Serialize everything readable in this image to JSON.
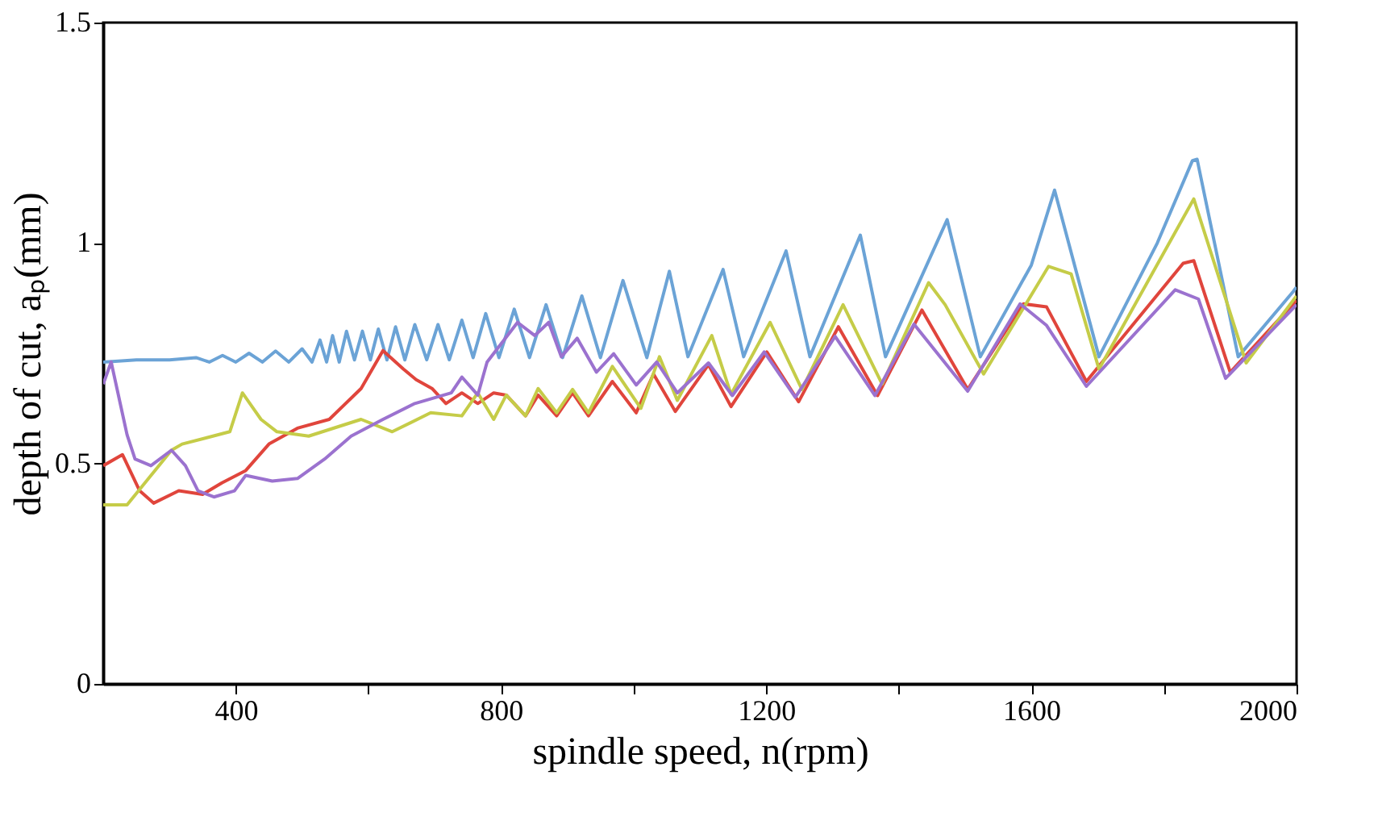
{
  "chart_data": {
    "type": "line",
    "xlabel": "spindle speed, n(rpm)",
    "ylabel": "depth of cut, aₚ(mm)",
    "xlim": [
      200,
      2000
    ],
    "ylim": [
      0,
      1.5
    ],
    "xticks": [
      400,
      {
        "value": 600,
        "label": null
      },
      800,
      {
        "value": 1000,
        "label": null
      },
      1200,
      {
        "value": 1400,
        "label": null
      },
      1600,
      {
        "value": 1800,
        "label": null
      },
      2000
    ],
    "yticks": [
      0,
      0.5,
      1,
      1.5
    ],
    "series": [
      {
        "color": "#6ba3d6",
        "x": [
          200,
          250,
          300,
          340,
          360,
          380,
          400,
          420,
          440,
          460,
          480,
          500,
          515,
          527,
          537,
          546,
          556,
          567,
          579,
          591,
          603,
          615,
          628,
          641,
          655,
          670,
          688,
          705,
          722,
          741,
          758,
          777,
          797,
          820,
          843,
          868,
          893,
          922,
          950,
          984,
          1020,
          1054,
          1082,
          1135,
          1166,
          1230,
          1266,
          1342,
          1380,
          1473,
          1523,
          1600,
          1635,
          1702,
          1790,
          1843,
          1850,
          1912,
          1995,
          2000
        ],
        "values": [
          0.73,
          0.735,
          0.735,
          0.74,
          0.73,
          0.745,
          0.73,
          0.75,
          0.73,
          0.755,
          0.73,
          0.76,
          0.73,
          0.78,
          0.73,
          0.79,
          0.73,
          0.8,
          0.735,
          0.8,
          0.735,
          0.805,
          0.735,
          0.81,
          0.735,
          0.815,
          0.735,
          0.815,
          0.735,
          0.825,
          0.74,
          0.84,
          0.74,
          0.85,
          0.74,
          0.86,
          0.74,
          0.88,
          0.74,
          0.915,
          0.74,
          0.936,
          0.742,
          0.94,
          0.742,
          0.982,
          0.742,
          1.018,
          0.742,
          1.053,
          0.742,
          0.95,
          1.12,
          0.742,
          1.0,
          1.187,
          1.19,
          0.742,
          0.89,
          0.9
        ]
      },
      {
        "color": "#e0453c",
        "x": [
          200,
          229,
          255,
          276,
          314,
          350,
          379,
          415,
          450,
          493,
          541,
          589,
          622,
          653,
          672,
          696,
          717,
          741,
          765,
          789,
          808,
          837,
          856,
          884,
          908,
          932,
          968,
          1004,
          1030,
          1063,
          1113,
          1147,
          1201,
          1249,
          1309,
          1368,
          1435,
          1504,
          1588,
          1623,
          1683,
          1829,
          1845,
          1900,
          2000
        ],
        "values": [
          0.495,
          0.52,
          0.438,
          0.41,
          0.438,
          0.43,
          0.456,
          0.484,
          0.544,
          0.58,
          0.6,
          0.67,
          0.756,
          0.714,
          0.69,
          0.67,
          0.636,
          0.66,
          0.636,
          0.66,
          0.655,
          0.608,
          0.655,
          0.608,
          0.66,
          0.608,
          0.686,
          0.615,
          0.703,
          0.618,
          0.724,
          0.629,
          0.753,
          0.64,
          0.81,
          0.654,
          0.848,
          0.668,
          0.862,
          0.855,
          0.686,
          0.954,
          0.96,
          0.707,
          0.87
        ]
      },
      {
        "color": "#c5cc48",
        "x": [
          200,
          236,
          303,
          319,
          391,
          410,
          438,
          462,
          510,
          589,
          636,
          694,
          741,
          765,
          789,
          808,
          837,
          856,
          884,
          908,
          932,
          968,
          1011,
          1039,
          1066,
          1118,
          1147,
          1206,
          1254,
          1316,
          1375,
          1445,
          1470,
          1528,
          1626,
          1660,
          1702,
          1845,
          1924,
          2000
        ],
        "values": [
          0.406,
          0.406,
          0.53,
          0.544,
          0.572,
          0.66,
          0.6,
          0.572,
          0.562,
          0.6,
          0.572,
          0.615,
          0.608,
          0.66,
          0.6,
          0.655,
          0.608,
          0.67,
          0.615,
          0.668,
          0.615,
          0.72,
          0.625,
          0.742,
          0.643,
          0.79,
          0.657,
          0.82,
          0.668,
          0.86,
          0.68,
          0.91,
          0.86,
          0.703,
          0.947,
          0.93,
          0.714,
          1.1,
          0.728,
          0.88
        ]
      },
      {
        "color": "#9b72cf",
        "x": [
          200,
          212,
          236,
          248,
          272,
          303,
          324,
          343,
          367,
          398,
          415,
          455,
          493,
          534,
          574,
          622,
          670,
          725,
          741,
          765,
          779,
          825,
          851,
          872,
          891,
          915,
          944,
          970,
          1004,
          1035,
          1066,
          1113,
          1149,
          1197,
          1244,
          1304,
          1364,
          1423,
          1504,
          1583,
          1623,
          1683,
          1817,
          1852,
          1893,
          2000
        ],
        "values": [
          0.68,
          0.73,
          0.565,
          0.51,
          0.495,
          0.53,
          0.495,
          0.438,
          0.424,
          0.438,
          0.473,
          0.46,
          0.466,
          0.51,
          0.562,
          0.6,
          0.636,
          0.66,
          0.696,
          0.655,
          0.73,
          0.82,
          0.79,
          0.82,
          0.742,
          0.784,
          0.707,
          0.749,
          0.678,
          0.73,
          0.66,
          0.728,
          0.654,
          0.753,
          0.65,
          0.788,
          0.654,
          0.816,
          0.664,
          0.862,
          0.813,
          0.675,
          0.894,
          0.873,
          0.693,
          0.86
        ]
      }
    ]
  }
}
